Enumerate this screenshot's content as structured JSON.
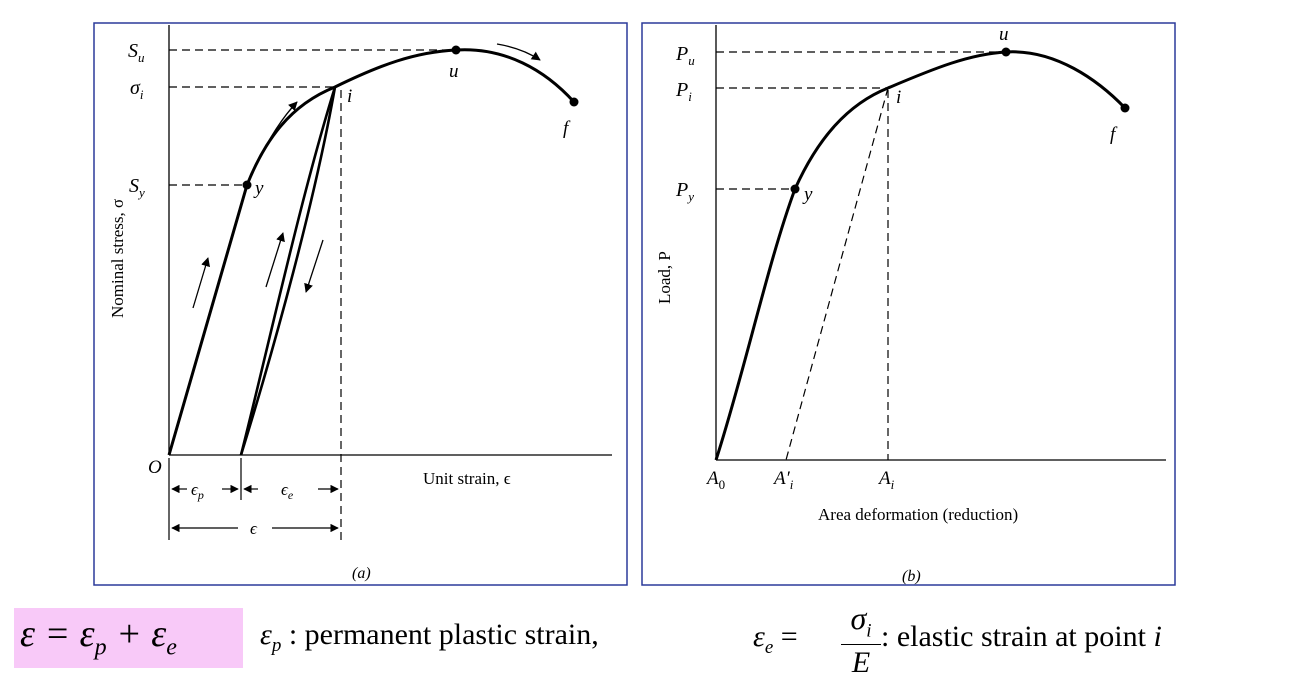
{
  "panel_a": {
    "caption": "(a)",
    "ylabel": "Nominal stress, σ",
    "xlabel": "Unit strain, ϵ",
    "origin": "O",
    "yticks": [
      "S",
      "σ",
      "S"
    ],
    "ytick_subs": [
      "u",
      "i",
      "y"
    ],
    "points": {
      "y": "y",
      "i": "i",
      "u": "u",
      "f": "f"
    },
    "dims": {
      "ep": "ϵ",
      "ep_sub": "p",
      "ee": "ϵ",
      "ee_sub": "e",
      "e": "ϵ"
    }
  },
  "panel_b": {
    "caption": "(b)",
    "ylabel": "Load, P",
    "xlabel": "Area deformation (reduction)",
    "yticks": [
      "P",
      "P",
      "P"
    ],
    "ytick_subs": [
      "u",
      "i",
      "y"
    ],
    "xticks": [
      "A",
      "A′",
      "A"
    ],
    "xtick_subs": [
      "0",
      "i",
      "i"
    ],
    "points": {
      "y": "y",
      "i": "i",
      "u": "u",
      "f": "f"
    }
  },
  "formula": {
    "main": "ε = ε",
    "main_sub1": "p",
    "plus": " + ε",
    "main_sub2": "e",
    "def1_sym": "ε",
    "def1_sub": "p",
    "def1_text": " : permanent plastic strain,",
    "def2_sym": "ε",
    "def2_sub": "e",
    "def2_eq": " =",
    "frac_num": "σ",
    "frac_num_sub": "i",
    "frac_den": "E",
    "def2_text": " : elastic strain at point ",
    "def2_point": "i"
  },
  "colors": {
    "frame": "#2b3a9a",
    "highlight": "#f8c9f8",
    "ink": "#000000"
  }
}
